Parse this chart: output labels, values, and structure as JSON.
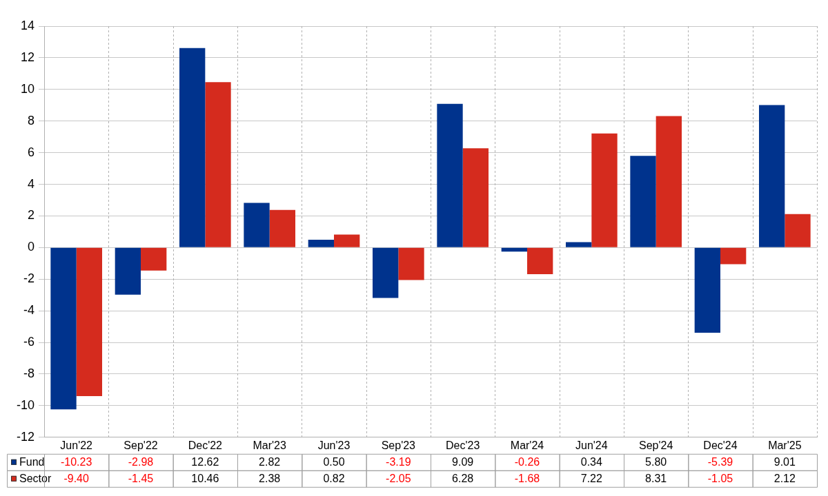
{
  "chart_data": {
    "type": "bar",
    "categories": [
      "Jun'22",
      "Sep'22",
      "Dec'22",
      "Mar'23",
      "Jun'23",
      "Sep'23",
      "Dec'23",
      "Mar'24",
      "Jun'24",
      "Sep'24",
      "Dec'24",
      "Mar'25"
    ],
    "series": [
      {
        "name": "Fund",
        "color": "#00338d",
        "values": [
          -10.23,
          -2.98,
          12.62,
          2.82,
          0.5,
          -3.19,
          9.09,
          -0.26,
          0.34,
          5.8,
          -5.39,
          9.01
        ],
        "value_labels": [
          "-10.23",
          "-2.98",
          "12.62",
          "2.82",
          "0.50",
          "-3.19",
          "9.09",
          "-0.26",
          "0.34",
          "5.80",
          "-5.39",
          "9.01"
        ]
      },
      {
        "name": "Sector",
        "color": "#d52b1e",
        "values": [
          -9.4,
          -1.45,
          10.46,
          2.38,
          0.82,
          -2.05,
          6.28,
          -1.68,
          7.22,
          8.31,
          -1.05,
          2.12
        ],
        "value_labels": [
          "-9.40",
          "-1.45",
          "10.46",
          "2.38",
          "0.82",
          "-2.05",
          "6.28",
          "-1.68",
          "7.22",
          "8.31",
          "-1.05",
          "2.12"
        ]
      }
    ],
    "ylim": [
      -12,
      14
    ],
    "yticks": [
      -12,
      -10,
      -8,
      -6,
      -4,
      -2,
      0,
      2,
      4,
      6,
      8,
      10,
      12,
      14
    ],
    "grid": true,
    "legend": "bottom"
  }
}
